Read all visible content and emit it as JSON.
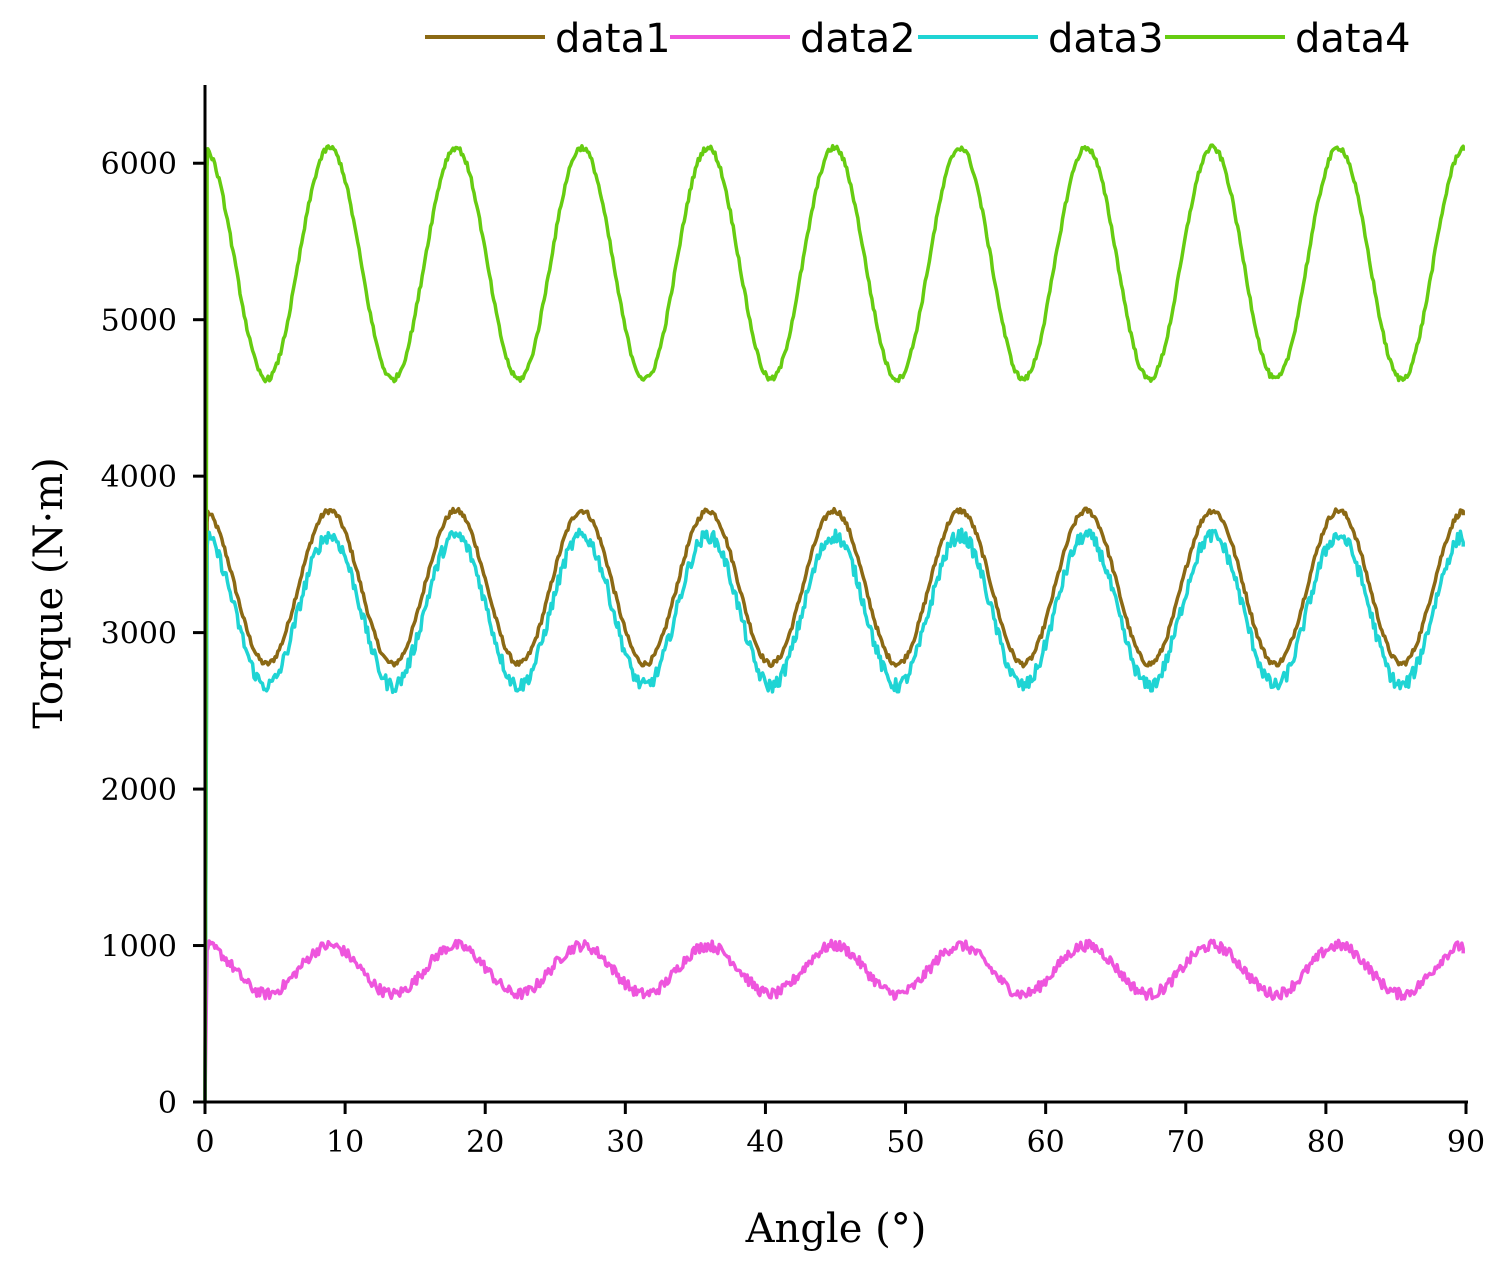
{
  "chart_data": {
    "type": "line",
    "title": "",
    "xlabel": "Angle (°)",
    "ylabel": "Torque (N·m)",
    "xlim": [
      0,
      90
    ],
    "ylim": [
      0,
      6500
    ],
    "xticks": [
      0,
      10,
      20,
      30,
      40,
      50,
      60,
      70,
      80,
      90
    ],
    "yticks": [
      0,
      1000,
      2000,
      3000,
      4000,
      5000,
      6000
    ],
    "legend_position": "top",
    "period_deg": 9,
    "series": [
      {
        "name": "data1",
        "color": "#8B6914",
        "min": 2800,
        "max": 3780,
        "peak_angles": [
          9,
          17.7,
          26.7,
          35.8,
          44.8,
          53.8,
          62.6,
          71.8,
          80.9
        ],
        "trough_angles": [
          4.5,
          13.2,
          22.3,
          31.2,
          40.3,
          49.4,
          58.3,
          67.3,
          76.4,
          85.4
        ],
        "end_value": 3750
      },
      {
        "name": "data2",
        "color": "#EE55DD",
        "min": 690,
        "max": 1000,
        "peak_angles": [
          8.8,
          17.6,
          26.9,
          35.8,
          44.8,
          53.8,
          62.7,
          71.9,
          80.9
        ],
        "trough_angles": [
          4.5,
          13.3,
          22.3,
          31.3,
          40.3,
          49.3,
          58.3,
          67.3,
          76.4,
          85.4
        ],
        "end_value": 950
      },
      {
        "name": "data3",
        "color": "#1FD4D4",
        "min": 2660,
        "max": 3620,
        "peak_angles": [
          8.8,
          17.6,
          26.7,
          35.8,
          44.8,
          53.8,
          62.7,
          71.7,
          80.9
        ],
        "trough_angles": [
          4.5,
          13.3,
          22.3,
          31.3,
          40.3,
          49.4,
          58.3,
          67.3,
          76.4,
          85.4
        ],
        "end_value": 3550
      },
      {
        "name": "data4",
        "color": "#66CC11",
        "min": 4620,
        "max": 6100,
        "peak_angles": [
          8.8,
          17.6,
          26.7,
          35.8,
          44.8,
          53.8,
          62.6,
          71.8,
          80.9
        ],
        "trough_angles": [
          4,
          13.2,
          22.3,
          31,
          40.3,
          49.4,
          58.3,
          67.2,
          76.4,
          85.4
        ],
        "end_value": 6080
      }
    ]
  }
}
